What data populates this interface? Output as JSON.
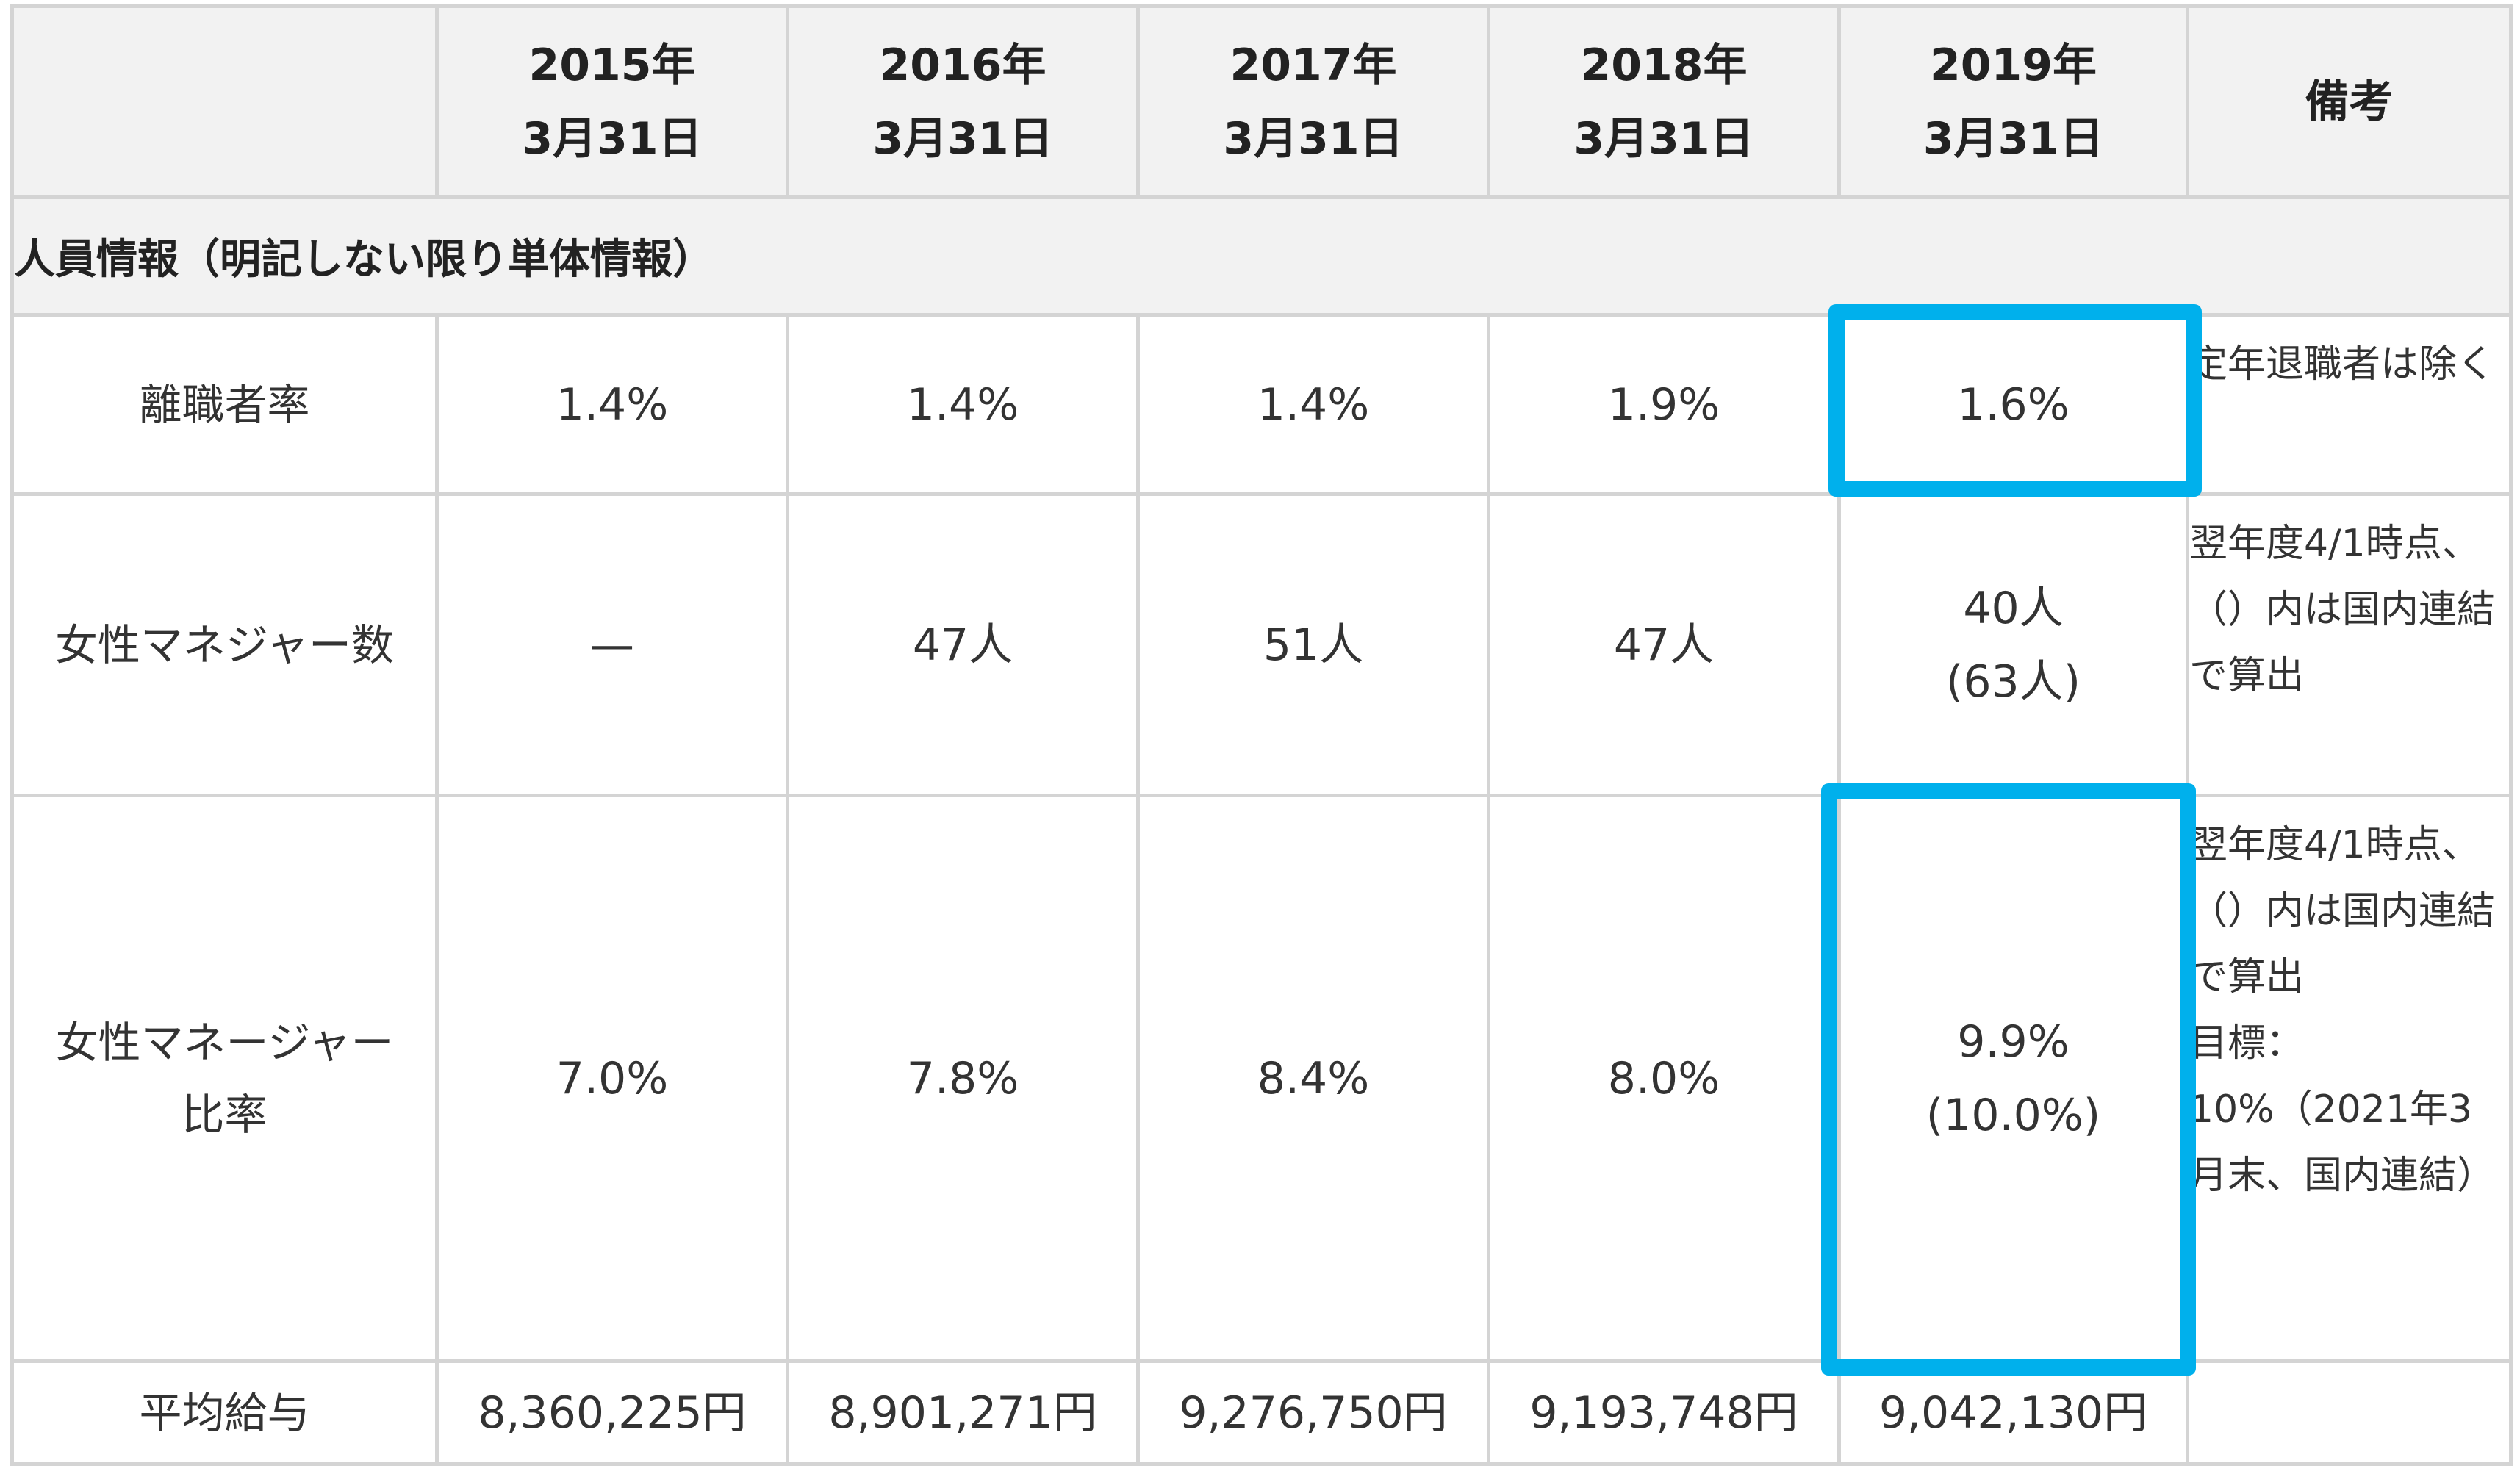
{
  "table": {
    "headers": [
      {
        "line1": "",
        "line2": ""
      },
      {
        "line1": "2015年",
        "line2": "3月31日"
      },
      {
        "line1": "2016年",
        "line2": "3月31日"
      },
      {
        "line1": "2017年",
        "line2": "3月31日"
      },
      {
        "line1": "2018年",
        "line2": "3月31日"
      },
      {
        "line1": "2019年",
        "line2": "3月31日"
      },
      {
        "line1": "備考",
        "line2": ""
      }
    ],
    "section_title": "人員情報（明記しない限り単体情報）",
    "rows": [
      {
        "label": "離職者率",
        "values": [
          "1.4%",
          "1.4%",
          "1.4%",
          "1.9%",
          "1.6%"
        ],
        "note": "定年退職者は除く"
      },
      {
        "label": "女性マネジャー数",
        "values": [
          "—",
          "47人",
          "51人",
          "47人",
          "40人"
        ],
        "value_sub": "(63人)",
        "note": "翌年度4/1時点、（）内は国内連結で算出"
      },
      {
        "label": "女性マネージャー比率",
        "values": [
          "7.0%",
          "7.8%",
          "8.4%",
          "8.0%",
          "9.9%"
        ],
        "value_sub": "(10.0%)",
        "note": "翌年度4/1時点、（）内は国内連結で算出",
        "note_target_label": "目標：",
        "note_target": "10%（2021年3月末、国内連結）"
      },
      {
        "label": "平均給与",
        "values": [
          "8,360,225円",
          "8,901,271円",
          "9,276,750円",
          "9,193,748円",
          "9,042,130円"
        ],
        "note": ""
      }
    ]
  },
  "highlight_color": "#00b0ec"
}
